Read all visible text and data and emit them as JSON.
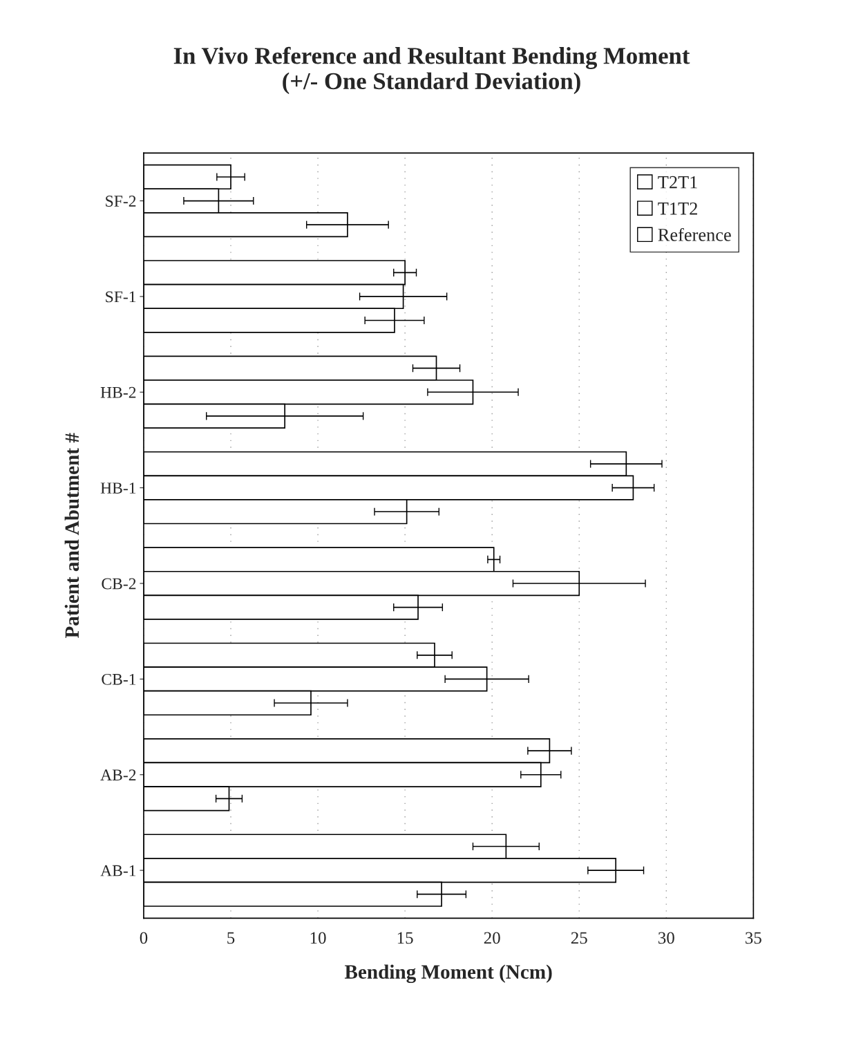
{
  "chart_data": {
    "type": "bar",
    "orientation": "horizontal",
    "title": "In Vivo Reference and Resultant Bending Moment\n(+/- One Standard Deviation)",
    "xlabel": "Bending Moment (Ncm)",
    "ylabel": "Patient and Abutment #",
    "categories": [
      "SF-2",
      "SF-1",
      "HB-2",
      "HB-1",
      "CB-2",
      "CB-1",
      "AB-2",
      "AB-1"
    ],
    "series": [
      {
        "name": "T2T1",
        "color": "#ffffff",
        "values": [
          5.0,
          15.0,
          16.8,
          27.7,
          20.1,
          16.7,
          23.3,
          20.8
        ],
        "errors": [
          0.8,
          0.65,
          1.35,
          2.05,
          0.35,
          1.0,
          1.25,
          1.9
        ]
      },
      {
        "name": "T1T2",
        "color": "#ffffff",
        "values": [
          4.3,
          14.9,
          18.9,
          28.1,
          25.0,
          19.7,
          22.8,
          27.1
        ],
        "errors": [
          2.0,
          2.5,
          2.6,
          1.2,
          3.8,
          2.4,
          1.15,
          1.6
        ]
      },
      {
        "name": "Reference",
        "color": "#ffffff",
        "values": [
          11.7,
          14.4,
          8.1,
          15.1,
          15.75,
          9.6,
          4.9,
          17.1
        ],
        "errors": [
          2.35,
          1.7,
          4.5,
          1.85,
          1.4,
          2.1,
          0.75,
          1.4
        ]
      }
    ],
    "xlim": [
      0,
      35
    ],
    "xticks": [
      0,
      5,
      10,
      15,
      20,
      25,
      30,
      35
    ],
    "grid": "x",
    "legend": "top right"
  }
}
